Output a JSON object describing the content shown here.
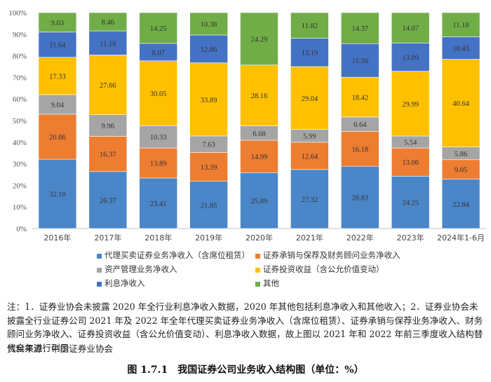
{
  "chart_data": {
    "type": "bar",
    "stacked": "percent",
    "categories": [
      "2016年",
      "2017年",
      "2018年",
      "2019年",
      "2020年",
      "2021年",
      "2022年",
      "2023年",
      "2024年1-6月"
    ],
    "ylim": [
      0,
      100
    ],
    "y_ticks": [
      "0%",
      "10%",
      "20%",
      "30%",
      "40%",
      "50%",
      "60%",
      "70%",
      "80%",
      "90%",
      "100%"
    ],
    "legend_position": "bottom",
    "series": [
      {
        "name": "代理买卖证券业务净收入（含席位租赁）",
        "color": "#4a86c8",
        "values": [
          32.1,
          26.37,
          23.41,
          21.85,
          25.89,
          27.32,
          28.83,
          24.25,
          22.84
        ],
        "labels": [
          "32.10",
          "26.37",
          "23.41",
          "21.85",
          "25.89",
          "27.32",
          "28.83",
          "24.25",
          "22.84"
        ]
      },
      {
        "name": "证券承销与保荐及财务顾问业务净收入",
        "color": "#ed7d31",
        "values": [
          20.86,
          16.37,
          13.89,
          13.39,
          14.99,
          12.64,
          16.18,
          13.06,
          9.05
        ],
        "labels": [
          "20.86",
          "16.37",
          "13.89",
          "13.39",
          "14.99",
          "12.64",
          "16.18",
          "13.06",
          "9.05"
        ]
      },
      {
        "name": "资产管理业务净收入",
        "color": "#a5a5a5",
        "values": [
          9.04,
          9.96,
          10.33,
          7.63,
          6.68,
          5.99,
          6.64,
          5.54,
          5.86
        ],
        "labels": [
          "9.04",
          "9.96",
          "10.33",
          "7.63",
          "6.68",
          "5.99",
          "6.64",
          "5.54",
          "5.86"
        ]
      },
      {
        "name": "证券投资收益（含公允价值变动）",
        "color": "#ffc000",
        "values": [
          17.33,
          27.66,
          30.05,
          33.89,
          28.16,
          29.04,
          18.42,
          29.99,
          40.64
        ],
        "labels": [
          "17.33",
          "27.66",
          "30.05",
          "33.89",
          "28.16",
          "29.04",
          "18.42",
          "29.99",
          "40.64"
        ]
      },
      {
        "name": "利息净收入",
        "color": "#4472c4",
        "values": [
          11.64,
          11.18,
          8.07,
          12.86,
          0,
          13.19,
          15.56,
          13.09,
          10.43
        ],
        "labels": [
          "11.64",
          "11.18",
          "8.07",
          "12.86",
          "-",
          "13.19",
          "15.56",
          "13.09",
          "10.43"
        ]
      },
      {
        "name": "其他",
        "color": "#70ad47",
        "values": [
          9.03,
          8.46,
          14.25,
          10.38,
          24.29,
          11.82,
          14.37,
          14.07,
          11.18
        ],
        "labels": [
          "9.03",
          "8.46",
          "14.25",
          "10.38",
          "24.29",
          "11.82",
          "14.37",
          "14.07",
          "11.18"
        ]
      }
    ]
  },
  "note": "注：1．证券业协会未披露 2020 年全行业利息净收入数据，2020 年其他包括利息净收入和其他收入；2．证券业协会未披露全行业证券公司 2021 年及 2022 年全年代理买卖证券业务净收入（含席位租赁）、证券承销与保荐业务净收入、财务顾问业务净收入、证券投资收益（含公允价值变动）、利息净收入数据，故上图以 2021 年和 2022 年前三季度收入结构替代全年进行列示",
  "source": "资料来源：中国证券业协会",
  "caption": "图 1.7.1　我国证券公司业务收入结构图（单位：%）"
}
